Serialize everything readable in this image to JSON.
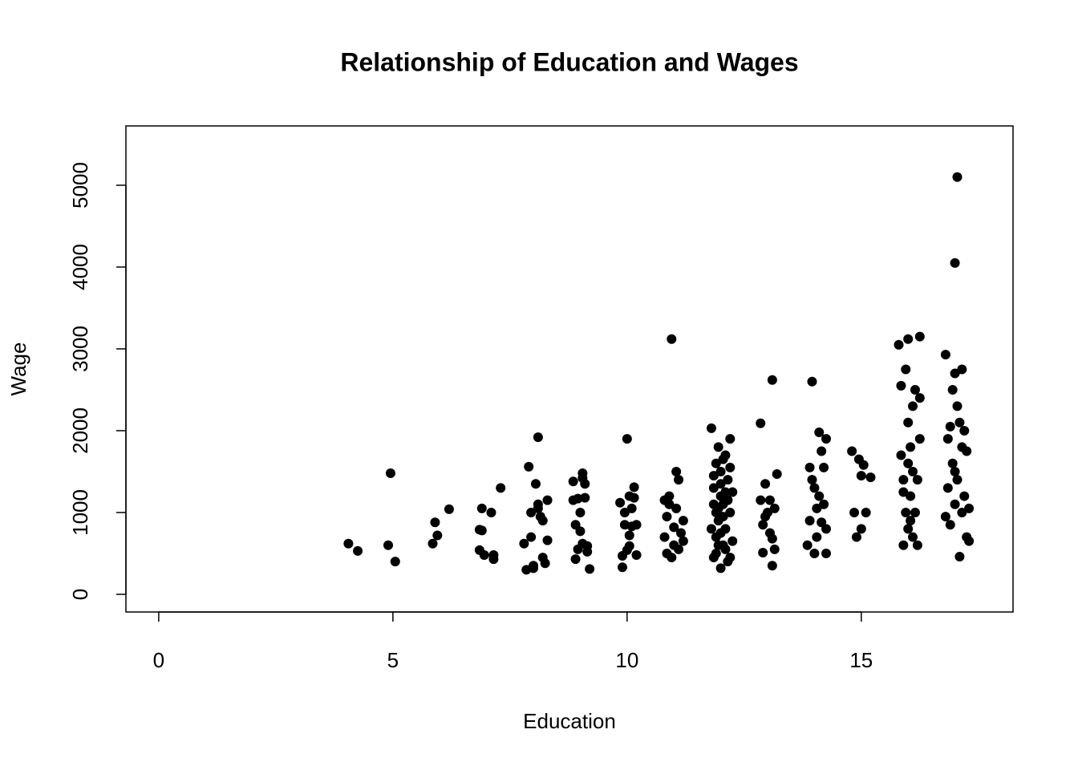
{
  "chart_data": {
    "type": "scatter",
    "title": "Relationship of Education and Wages",
    "x_label": "Education",
    "y_label": "Wage",
    "color": "#000000",
    "x": [
      4.05,
      4.25,
      4.9,
      4.95,
      5.05,
      5.85,
      5.9,
      5.95,
      6.2,
      6.85,
      6.9,
      6.85,
      6.95,
      6.9,
      7.1,
      7.15,
      7.15,
      7.3,
      7.8,
      7.85,
      7.9,
      7.95,
      8.0,
      7.95,
      8.05,
      8.1,
      8.1,
      8.15,
      8.2,
      8.2,
      8.25,
      8.3,
      8.3,
      8.0,
      8.1,
      8.85,
      8.9,
      8.9,
      8.85,
      8.95,
      9.0,
      9.0,
      9.05,
      9.05,
      9.1,
      9.1,
      9.15,
      9.15,
      9.2,
      9.05,
      8.95,
      9.85,
      9.9,
      9.9,
      9.95,
      9.95,
      10.0,
      10.0,
      10.05,
      10.05,
      10.1,
      10.1,
      10.15,
      10.15,
      10.2,
      10.2,
      10.05,
      10.8,
      10.8,
      10.85,
      10.85,
      10.9,
      10.95,
      10.95,
      11.0,
      11.0,
      11.05,
      11.05,
      11.1,
      11.1,
      11.15,
      11.2,
      11.2,
      10.9,
      11.8,
      11.85,
      11.85,
      11.9,
      11.9,
      11.9,
      11.95,
      11.95,
      12.0,
      12.0,
      12.0,
      12.05,
      12.05,
      12.1,
      12.1,
      12.15,
      12.15,
      12.2,
      12.2,
      12.25,
      12.25,
      11.85,
      11.9,
      12.0,
      12.05,
      12.1,
      11.95,
      12.15,
      11.8,
      12.2,
      12.05,
      12.0,
      11.85,
      12.1,
      12.2,
      11.95,
      12.85,
      12.85,
      12.9,
      12.9,
      12.95,
      13.0,
      13.05,
      13.05,
      13.1,
      13.1,
      13.15,
      13.15,
      13.2,
      13.1,
      12.95,
      13.85,
      13.9,
      13.9,
      13.95,
      14.0,
      14.0,
      14.05,
      14.05,
      14.1,
      14.1,
      14.15,
      14.15,
      14.2,
      14.2,
      14.25,
      14.25,
      14.25,
      13.95,
      14.8,
      14.85,
      14.9,
      14.95,
      15.0,
      15.0,
      15.05,
      15.1,
      15.2,
      15.8,
      15.85,
      15.9,
      15.9,
      15.95,
      15.95,
      16.0,
      16.0,
      16.0,
      16.05,
      16.05,
      16.1,
      16.1,
      16.1,
      16.15,
      16.15,
      16.2,
      16.2,
      16.25,
      16.25,
      16.25,
      15.85,
      15.9,
      16.0,
      16.05,
      16.8,
      16.8,
      16.85,
      16.85,
      16.9,
      16.95,
      16.95,
      17.0,
      17.0,
      17.0,
      17.05,
      17.05,
      17.05,
      17.1,
      17.1,
      17.15,
      17.15,
      17.15,
      17.2,
      17.2,
      17.25,
      17.25,
      17.3,
      17.3,
      16.9,
      17.0
    ],
    "y": [
      620,
      530,
      600,
      1480,
      400,
      620,
      880,
      720,
      1040,
      790,
      1050,
      540,
      480,
      780,
      1000,
      480,
      430,
      1300,
      620,
      300,
      1560,
      700,
      350,
      1000,
      1350,
      1920,
      1100,
      950,
      450,
      900,
      380,
      660,
      1150,
      320,
      1050,
      1380,
      850,
      430,
      1150,
      550,
      1000,
      770,
      620,
      1480,
      1180,
      1350,
      520,
      590,
      310,
      1420,
      1170,
      1120,
      330,
      470,
      850,
      1000,
      1900,
      540,
      1200,
      720,
      830,
      1050,
      1180,
      1310,
      480,
      850,
      590,
      1150,
      700,
      500,
      950,
      1200,
      3120,
      450,
      820,
      600,
      1050,
      1500,
      1400,
      550,
      750,
      650,
      900,
      1100,
      2030,
      450,
      1300,
      1000,
      1600,
      700,
      1800,
      900,
      320,
      1200,
      1500,
      600,
      1100,
      1700,
      800,
      1400,
      400,
      1900,
      1000,
      1250,
      650,
      1100,
      500,
      1350,
      950,
      550,
      1050,
      1150,
      800,
      1550,
      1650,
      750,
      1450,
      1250,
      450,
      600,
      2090,
      1150,
      850,
      510,
      1350,
      1000,
      1150,
      750,
      2620,
      350,
      1050,
      550,
      1470,
      680,
      950,
      600,
      1550,
      900,
      2600,
      1300,
      500,
      1050,
      700,
      1980,
      1200,
      1750,
      880,
      1550,
      1100,
      1900,
      500,
      800,
      1400,
      1750,
      1000,
      700,
      1650,
      1450,
      800,
      1580,
      1000,
      1430,
      3050,
      2550,
      600,
      1400,
      2750,
      1000,
      3120,
      2100,
      800,
      1800,
      1200,
      2300,
      1500,
      700,
      2500,
      1000,
      1400,
      600,
      3150,
      2400,
      1900,
      1700,
      1250,
      1600,
      900,
      2930,
      950,
      1900,
      1300,
      850,
      2500,
      1600,
      4050,
      2700,
      1100,
      5100,
      2300,
      1400,
      2100,
      460,
      2750,
      1800,
      1000,
      2000,
      1200,
      700,
      1750,
      1050,
      650,
      2050,
      1500
    ],
    "xlim": [
      -0.7,
      18.24
    ],
    "ylim": [
      -216,
      5725
    ],
    "xticks": [
      0,
      5,
      10,
      15
    ],
    "yticks": [
      0,
      1000,
      2000,
      3000,
      4000,
      5000
    ]
  }
}
